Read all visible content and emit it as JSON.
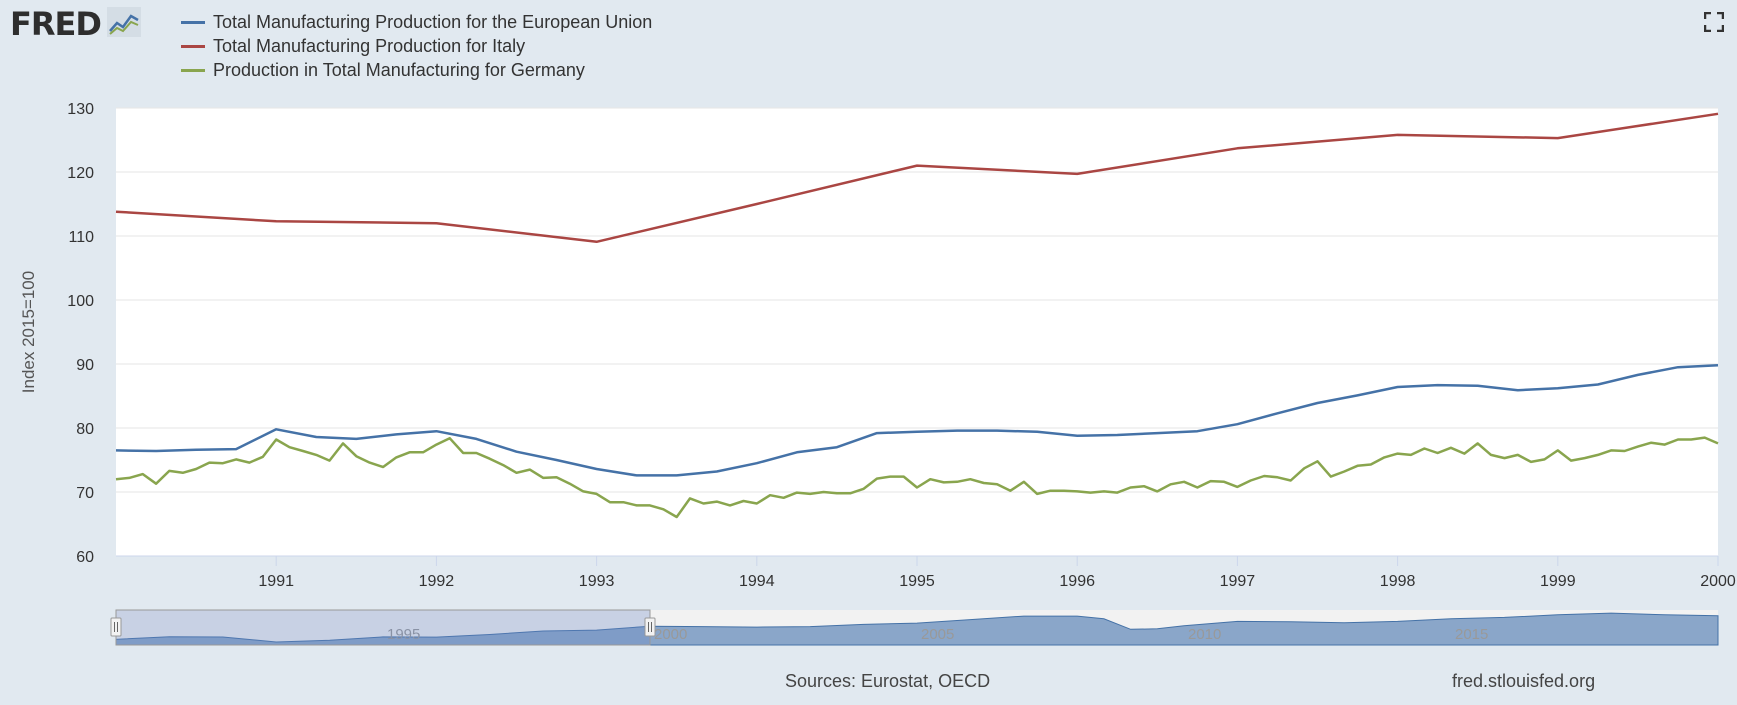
{
  "header": {
    "logo_text": "FRED",
    "logo_icon": "chart-line-icon",
    "expand_icon": "fullscreen-icon"
  },
  "colors": {
    "background": "#e1e9f0",
    "plot_bg": "#ffffff",
    "grid": "#e6e6e6",
    "eu": "#4572a7",
    "italy": "#aa4643",
    "germany": "#89a54e",
    "navigator_fill": "#8aa6c9",
    "navigator_line": "#4572a7",
    "navigator_mask": "rgba(102,133,194,0.3)"
  },
  "chart_data": {
    "type": "line",
    "title": "",
    "xlabel": "",
    "ylabel": "Index 2015=100",
    "ylim": [
      60,
      130
    ],
    "xlim": [
      1990.0,
      2000.0
    ],
    "yticks": [
      60,
      70,
      80,
      90,
      100,
      110,
      120,
      130
    ],
    "xticks": [
      "1991",
      "1992",
      "1993",
      "1994",
      "1995",
      "1996",
      "1997",
      "1998",
      "1999",
      "2000"
    ],
    "grid": true,
    "legend_position": "top-left",
    "series": [
      {
        "name": "Total Manufacturing Production for the European Union",
        "color": "#4572a7",
        "points": [
          [
            1990.0,
            76.5
          ],
          [
            1990.25,
            76.4
          ],
          [
            1990.5,
            76.6
          ],
          [
            1990.75,
            76.7
          ],
          [
            1991.0,
            79.8
          ],
          [
            1991.25,
            78.6
          ],
          [
            1991.5,
            78.3
          ],
          [
            1991.75,
            79.0
          ],
          [
            1992.0,
            79.5
          ],
          [
            1992.25,
            78.3
          ],
          [
            1992.5,
            76.3
          ],
          [
            1992.75,
            75.0
          ],
          [
            1993.0,
            73.6
          ],
          [
            1993.25,
            72.6
          ],
          [
            1993.5,
            72.6
          ],
          [
            1993.75,
            73.2
          ],
          [
            1994.0,
            74.5
          ],
          [
            1994.25,
            76.2
          ],
          [
            1994.5,
            77.0
          ],
          [
            1994.75,
            79.2
          ],
          [
            1995.0,
            79.4
          ],
          [
            1995.25,
            79.6
          ],
          [
            1995.5,
            79.6
          ],
          [
            1995.75,
            79.4
          ],
          [
            1996.0,
            78.8
          ],
          [
            1996.25,
            78.9
          ],
          [
            1996.5,
            79.2
          ],
          [
            1996.75,
            79.5
          ],
          [
            1997.0,
            80.6
          ],
          [
            1997.25,
            82.3
          ],
          [
            1997.5,
            83.9
          ],
          [
            1997.75,
            85.1
          ],
          [
            1998.0,
            86.4
          ],
          [
            1998.25,
            86.7
          ],
          [
            1998.5,
            86.6
          ],
          [
            1998.75,
            85.9
          ],
          [
            1999.0,
            86.2
          ],
          [
            1999.25,
            86.8
          ],
          [
            1999.5,
            88.3
          ],
          [
            1999.75,
            89.5
          ],
          [
            2000.0,
            89.8
          ]
        ]
      },
      {
        "name": "Total Manufacturing Production for Italy",
        "color": "#aa4643",
        "points": [
          [
            1990.0,
            113.8
          ],
          [
            1991.0,
            112.3
          ],
          [
            1992.0,
            112.0
          ],
          [
            1993.0,
            109.1
          ],
          [
            1994.0,
            115.0
          ],
          [
            1995.0,
            121.0
          ],
          [
            1996.0,
            119.7
          ],
          [
            1997.0,
            123.7
          ],
          [
            1998.0,
            125.8
          ],
          [
            1999.0,
            125.3
          ],
          [
            2000.0,
            129.1
          ]
        ]
      },
      {
        "name": "Production in Total Manufacturing for Germany",
        "color": "#89a54e",
        "points": [
          [
            1990.0,
            72.0
          ],
          [
            1990.083,
            72.2
          ],
          [
            1990.167,
            72.8
          ],
          [
            1990.25,
            71.3
          ],
          [
            1990.333,
            73.3
          ],
          [
            1990.417,
            73.0
          ],
          [
            1990.5,
            73.6
          ],
          [
            1990.583,
            74.6
          ],
          [
            1990.667,
            74.5
          ],
          [
            1990.75,
            75.1
          ],
          [
            1990.833,
            74.6
          ],
          [
            1990.917,
            75.5
          ],
          [
            1991.0,
            78.2
          ],
          [
            1991.083,
            77.0
          ],
          [
            1991.167,
            76.4
          ],
          [
            1991.25,
            75.8
          ],
          [
            1991.333,
            74.9
          ],
          [
            1991.417,
            77.6
          ],
          [
            1991.5,
            75.6
          ],
          [
            1991.583,
            74.6
          ],
          [
            1991.667,
            73.9
          ],
          [
            1991.75,
            75.4
          ],
          [
            1991.833,
            76.2
          ],
          [
            1991.917,
            76.2
          ],
          [
            1992.0,
            77.4
          ],
          [
            1992.083,
            78.4
          ],
          [
            1992.167,
            76.1
          ],
          [
            1992.25,
            76.1
          ],
          [
            1992.333,
            75.2
          ],
          [
            1992.417,
            74.2
          ],
          [
            1992.5,
            73.0
          ],
          [
            1992.583,
            73.5
          ],
          [
            1992.667,
            72.2
          ],
          [
            1992.75,
            72.3
          ],
          [
            1992.833,
            71.3
          ],
          [
            1992.917,
            70.1
          ],
          [
            1993.0,
            69.7
          ],
          [
            1993.083,
            68.4
          ],
          [
            1993.167,
            68.4
          ],
          [
            1993.25,
            67.9
          ],
          [
            1993.333,
            67.9
          ],
          [
            1993.417,
            67.3
          ],
          [
            1993.5,
            66.1
          ],
          [
            1993.583,
            69.0
          ],
          [
            1993.667,
            68.2
          ],
          [
            1993.75,
            68.5
          ],
          [
            1993.833,
            67.9
          ],
          [
            1993.917,
            68.6
          ],
          [
            1994.0,
            68.2
          ],
          [
            1994.083,
            69.5
          ],
          [
            1994.167,
            69.1
          ],
          [
            1994.25,
            69.9
          ],
          [
            1994.333,
            69.7
          ],
          [
            1994.417,
            70.0
          ],
          [
            1994.5,
            69.8
          ],
          [
            1994.583,
            69.8
          ],
          [
            1994.667,
            70.5
          ],
          [
            1994.75,
            72.1
          ],
          [
            1994.833,
            72.4
          ],
          [
            1994.917,
            72.4
          ],
          [
            1995.0,
            70.7
          ],
          [
            1995.083,
            72.0
          ],
          [
            1995.167,
            71.5
          ],
          [
            1995.25,
            71.6
          ],
          [
            1995.333,
            72.0
          ],
          [
            1995.417,
            71.4
          ],
          [
            1995.5,
            71.2
          ],
          [
            1995.583,
            70.2
          ],
          [
            1995.667,
            71.6
          ],
          [
            1995.75,
            69.7
          ],
          [
            1995.833,
            70.2
          ],
          [
            1995.917,
            70.2
          ],
          [
            1996.0,
            70.1
          ],
          [
            1996.083,
            69.9
          ],
          [
            1996.167,
            70.1
          ],
          [
            1996.25,
            69.9
          ],
          [
            1996.333,
            70.7
          ],
          [
            1996.417,
            70.9
          ],
          [
            1996.5,
            70.1
          ],
          [
            1996.583,
            71.2
          ],
          [
            1996.667,
            71.6
          ],
          [
            1996.75,
            70.7
          ],
          [
            1996.833,
            71.7
          ],
          [
            1996.917,
            71.6
          ],
          [
            1997.0,
            70.8
          ],
          [
            1997.083,
            71.8
          ],
          [
            1997.167,
            72.5
          ],
          [
            1997.25,
            72.3
          ],
          [
            1997.333,
            71.8
          ],
          [
            1997.417,
            73.7
          ],
          [
            1997.5,
            74.8
          ],
          [
            1997.583,
            72.4
          ],
          [
            1997.667,
            73.2
          ],
          [
            1997.75,
            74.1
          ],
          [
            1997.833,
            74.3
          ],
          [
            1997.917,
            75.4
          ],
          [
            1998.0,
            76.0
          ],
          [
            1998.083,
            75.8
          ],
          [
            1998.167,
            76.8
          ],
          [
            1998.25,
            76.1
          ],
          [
            1998.333,
            76.9
          ],
          [
            1998.417,
            76.0
          ],
          [
            1998.5,
            77.6
          ],
          [
            1998.583,
            75.8
          ],
          [
            1998.667,
            75.3
          ],
          [
            1998.75,
            75.8
          ],
          [
            1998.833,
            74.7
          ],
          [
            1998.917,
            75.1
          ],
          [
            1999.0,
            76.5
          ],
          [
            1999.083,
            74.9
          ],
          [
            1999.167,
            75.3
          ],
          [
            1999.25,
            75.8
          ],
          [
            1999.333,
            76.5
          ],
          [
            1999.417,
            76.4
          ],
          [
            1999.5,
            77.1
          ],
          [
            1999.583,
            77.7
          ],
          [
            1999.667,
            77.4
          ],
          [
            1999.75,
            78.2
          ],
          [
            1999.833,
            78.2
          ],
          [
            1999.917,
            78.5
          ],
          [
            2000.0,
            77.6
          ]
        ]
      }
    ],
    "navigator": {
      "labels": [
        "1995",
        "2000",
        "2005",
        "2010",
        "2015"
      ],
      "range": [
        1990.0,
        2020.0
      ],
      "selected": [
        1990.0,
        2000.0
      ],
      "values": [
        [
          1990,
          76.5
        ],
        [
          1991,
          79.5
        ],
        [
          1992,
          79.2
        ],
        [
          1993,
          73.4
        ],
        [
          1994,
          75.5
        ],
        [
          1995,
          79.3
        ],
        [
          1996,
          79.0
        ],
        [
          1997,
          82.0
        ],
        [
          1998,
          86.0
        ],
        [
          1999,
          87.0
        ],
        [
          2000,
          91.5
        ],
        [
          2001,
          91.0
        ],
        [
          2002,
          90.5
        ],
        [
          2003,
          91.0
        ],
        [
          2004,
          93.5
        ],
        [
          2005,
          95.0
        ],
        [
          2006,
          99.0
        ],
        [
          2007,
          103.0
        ],
        [
          2008,
          103.0
        ],
        [
          2008.5,
          100.0
        ],
        [
          2009,
          88.0
        ],
        [
          2009.5,
          88.5
        ],
        [
          2010,
          92.0
        ],
        [
          2011,
          97.0
        ],
        [
          2012,
          96.5
        ],
        [
          2013,
          95.5
        ],
        [
          2014,
          97.0
        ],
        [
          2015,
          100.0
        ],
        [
          2016,
          101.5
        ],
        [
          2017,
          104.5
        ],
        [
          2018,
          106.5
        ],
        [
          2019,
          104.5
        ],
        [
          2020,
          103.5
        ]
      ]
    }
  },
  "footer": {
    "sources": "Sources: Eurostat, OECD",
    "site": "fred.stlouisfed.org"
  }
}
